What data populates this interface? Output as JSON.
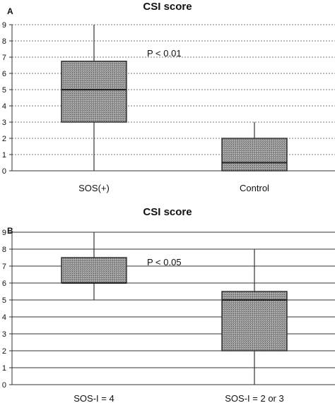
{
  "chart_data": [
    {
      "panel_label": "A",
      "type": "box",
      "title": "CSI score",
      "ylim": [
        0,
        9
      ],
      "yticks": [
        "0",
        "1",
        "2",
        "3",
        "4",
        "5",
        "6",
        "7",
        "8",
        "9"
      ],
      "grid": "horizontal dashed",
      "annotation": "P < 0.01",
      "categories": [
        "SOS(+)",
        "Control"
      ],
      "boxes": [
        {
          "category": "SOS(+)",
          "min": 0,
          "q1": 3,
          "median": 5,
          "q3": 6.75,
          "max": 9
        },
        {
          "category": "Control",
          "min": 0,
          "q1": 0,
          "median": 0.5,
          "q3": 2,
          "max": 3
        }
      ]
    },
    {
      "panel_label": "B",
      "type": "box",
      "title": "CSI score",
      "ylim": [
        0,
        9
      ],
      "yticks": [
        "0",
        "1",
        "2",
        "3",
        "4",
        "5",
        "6",
        "7",
        "8",
        "9"
      ],
      "grid": "horizontal",
      "annotation": "P < 0.05",
      "categories": [
        "SOS-I = 4",
        "SOS-I = 2 or 3"
      ],
      "boxes": [
        {
          "category": "SOS-I = 4",
          "min": 5,
          "q1": 6,
          "median": 6,
          "q3": 7.5,
          "max": 9
        },
        {
          "category": "SOS-I = 2 or 3",
          "min": 0,
          "q1": 2,
          "median": 5,
          "q3": 5.5,
          "max": 8
        }
      ]
    }
  ]
}
